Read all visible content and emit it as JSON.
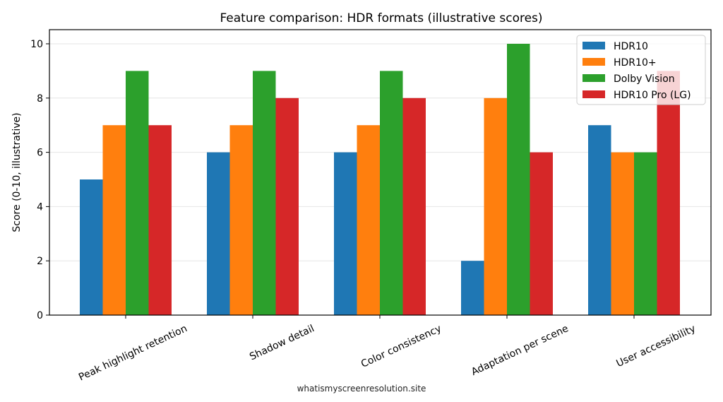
{
  "chart_data": {
    "type": "bar",
    "title": "Feature comparison: HDR formats (illustrative scores)",
    "xlabel": "",
    "ylabel": "Score (0-10, illustrative)",
    "ylim": [
      0,
      10.5
    ],
    "yticks": [
      0,
      2,
      4,
      6,
      8,
      10
    ],
    "grid": true,
    "legend_position": "upper right",
    "categories": [
      "Peak highlight retention",
      "Shadow detail",
      "Color consistency",
      "Adaptation per scene",
      "User accessibility"
    ],
    "series": [
      {
        "name": "HDR10",
        "color": "#1f77b4",
        "values": [
          5,
          6,
          6,
          2,
          7
        ]
      },
      {
        "name": "HDR10+",
        "color": "#ff7f0e",
        "values": [
          7,
          7,
          7,
          8,
          6
        ]
      },
      {
        "name": "Dolby Vision",
        "color": "#2ca02c",
        "values": [
          9,
          9,
          9,
          10,
          6
        ]
      },
      {
        "name": "HDR10 Pro (LG)",
        "color": "#d62728",
        "values": [
          7,
          8,
          8,
          6,
          9
        ]
      }
    ]
  },
  "watermark": "whatismyscreenresolution.site"
}
